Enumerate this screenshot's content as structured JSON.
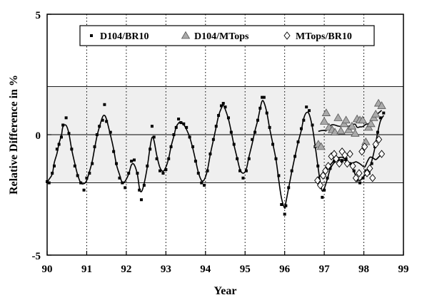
{
  "chart_data": {
    "type": "scatter",
    "xlabel": "Year",
    "ylabel": "Relative Difference in %",
    "xlim": [
      90,
      99
    ],
    "ylim": [
      -5,
      5
    ],
    "x_ticks": [
      "90",
      "91",
      "92",
      "93",
      "94",
      "95",
      "96",
      "97",
      "98",
      "99"
    ],
    "y_ticks": [
      "5",
      "0",
      "-5"
    ],
    "y_tick_values": [
      5,
      0,
      -5
    ],
    "shaded_band": [
      -2,
      2
    ],
    "grid": {
      "vertical_dotted": true,
      "horizontal_at_zero": true
    },
    "legend": {
      "placement": "top-center",
      "border": true
    },
    "series": [
      {
        "name": "D104/BR10",
        "marker": "square",
        "color": "#000000",
        "points": [
          [
            90.0,
            -1.95
          ],
          [
            90.05,
            -2.0
          ],
          [
            90.13,
            -1.6
          ],
          [
            90.18,
            -1.3
          ],
          [
            90.25,
            -0.6
          ],
          [
            90.3,
            -0.4
          ],
          [
            90.36,
            -0.1
          ],
          [
            90.4,
            0.4
          ],
          [
            90.48,
            0.7
          ],
          [
            90.55,
            0.05
          ],
          [
            90.62,
            -0.6
          ],
          [
            90.7,
            -1.3
          ],
          [
            90.77,
            -1.7
          ],
          [
            90.85,
            -2.0
          ],
          [
            90.93,
            -2.3
          ],
          [
            91.0,
            -1.8
          ],
          [
            91.07,
            -1.6
          ],
          [
            91.14,
            -1.2
          ],
          [
            91.2,
            -0.5
          ],
          [
            91.26,
            0.0
          ],
          [
            91.32,
            0.35
          ],
          [
            91.4,
            0.6
          ],
          [
            91.45,
            1.25
          ],
          [
            91.5,
            0.55
          ],
          [
            91.6,
            0.1
          ],
          [
            91.68,
            -0.7
          ],
          [
            91.75,
            -1.2
          ],
          [
            91.83,
            -1.8
          ],
          [
            91.9,
            -2.0
          ],
          [
            91.97,
            -2.2
          ],
          [
            92.06,
            -1.6
          ],
          [
            92.13,
            -1.1
          ],
          [
            92.2,
            -1.05
          ],
          [
            92.28,
            -1.6
          ],
          [
            92.33,
            -2.3
          ],
          [
            92.38,
            -2.7
          ],
          [
            92.45,
            -2.1
          ],
          [
            92.53,
            -1.3
          ],
          [
            92.6,
            -0.6
          ],
          [
            92.65,
            0.35
          ],
          [
            92.7,
            -0.1
          ],
          [
            92.77,
            -1.0
          ],
          [
            92.85,
            -1.5
          ],
          [
            92.93,
            -1.6
          ],
          [
            93.0,
            -1.45
          ],
          [
            93.07,
            -1.0
          ],
          [
            93.13,
            -0.5
          ],
          [
            93.2,
            0.0
          ],
          [
            93.26,
            0.3
          ],
          [
            93.32,
            0.65
          ],
          [
            93.38,
            0.5
          ],
          [
            93.45,
            0.45
          ],
          [
            93.52,
            0.3
          ],
          [
            93.6,
            -0.1
          ],
          [
            93.68,
            -0.5
          ],
          [
            93.75,
            -1.1
          ],
          [
            93.82,
            -1.6
          ],
          [
            93.9,
            -2.0
          ],
          [
            93.97,
            -2.1
          ],
          [
            94.05,
            -1.5
          ],
          [
            94.12,
            -0.8
          ],
          [
            94.2,
            -0.2
          ],
          [
            94.27,
            0.35
          ],
          [
            94.33,
            0.8
          ],
          [
            94.4,
            1.2
          ],
          [
            94.45,
            1.3
          ],
          [
            94.5,
            1.15
          ],
          [
            94.58,
            0.7
          ],
          [
            94.65,
            0.1
          ],
          [
            94.72,
            -0.4
          ],
          [
            94.8,
            -1.0
          ],
          [
            94.87,
            -1.5
          ],
          [
            94.95,
            -1.8
          ],
          [
            95.03,
            -1.5
          ],
          [
            95.1,
            -1.0
          ],
          [
            95.18,
            -0.2
          ],
          [
            95.25,
            0.1
          ],
          [
            95.32,
            0.6
          ],
          [
            95.38,
            1.1
          ],
          [
            95.43,
            1.55
          ],
          [
            95.48,
            1.55
          ],
          [
            95.55,
            0.9
          ],
          [
            95.62,
            0.3
          ],
          [
            95.7,
            -0.4
          ],
          [
            95.78,
            -1.0
          ],
          [
            95.85,
            -1.7
          ],
          [
            95.92,
            -2.9
          ],
          [
            96.0,
            -3.3
          ],
          [
            96.03,
            -2.95
          ],
          [
            96.1,
            -2.2
          ],
          [
            96.18,
            -1.5
          ],
          [
            96.26,
            -0.9
          ],
          [
            96.34,
            -0.3
          ],
          [
            96.42,
            0.25
          ],
          [
            96.48,
            0.6
          ],
          [
            96.55,
            1.15
          ],
          [
            96.62,
            1.0
          ],
          [
            96.7,
            0.4
          ],
          [
            96.77,
            -0.5
          ],
          [
            96.84,
            -1.3
          ],
          [
            96.9,
            -2.1
          ],
          [
            96.95,
            -2.6
          ],
          [
            97.0,
            -2.3
          ],
          [
            97.08,
            -1.8
          ],
          [
            97.15,
            -1.4
          ],
          [
            97.25,
            -1.1
          ],
          [
            97.35,
            -1.0
          ],
          [
            97.45,
            -1.1
          ],
          [
            97.55,
            -1.0
          ],
          [
            97.65,
            -1.2
          ],
          [
            97.75,
            -1.5
          ],
          [
            97.82,
            -1.9
          ],
          [
            97.9,
            -2.0
          ],
          [
            97.98,
            -1.8
          ],
          [
            98.05,
            -1.5
          ],
          [
            98.13,
            -1.6
          ],
          [
            98.2,
            -1.2
          ],
          [
            98.28,
            -0.5
          ],
          [
            98.35,
            0.1
          ],
          [
            98.42,
            0.7
          ],
          [
            98.5,
            0.9
          ]
        ]
      },
      {
        "name": "D104/MTops",
        "marker": "triangle",
        "color": "#aaaaaa",
        "points": [
          [
            96.85,
            -0.4
          ],
          [
            96.92,
            -0.5
          ],
          [
            97.0,
            0.55
          ],
          [
            97.05,
            0.9
          ],
          [
            97.12,
            0.3
          ],
          [
            97.2,
            0.2
          ],
          [
            97.27,
            0.1
          ],
          [
            97.35,
            0.7
          ],
          [
            97.42,
            0.15
          ],
          [
            97.5,
            0.45
          ],
          [
            97.55,
            0.6
          ],
          [
            97.62,
            0.2
          ],
          [
            97.7,
            0.35
          ],
          [
            97.78,
            0.05
          ],
          [
            97.83,
            0.65
          ],
          [
            97.9,
            0.6
          ],
          [
            97.97,
            0.6
          ],
          [
            98.05,
            -0.3
          ],
          [
            98.12,
            0.3
          ],
          [
            98.18,
            0.45
          ],
          [
            98.25,
            0.7
          ],
          [
            98.3,
            0.85
          ],
          [
            98.37,
            1.3
          ],
          [
            98.45,
            1.2
          ]
        ]
      },
      {
        "name": "MTops/BR10",
        "marker": "diamond",
        "color": "#ffffff",
        "points": [
          [
            96.83,
            -1.9
          ],
          [
            96.9,
            -2.1
          ],
          [
            96.97,
            -1.7
          ],
          [
            97.03,
            -1.5
          ],
          [
            97.1,
            -1.3
          ],
          [
            97.18,
            -0.9
          ],
          [
            97.25,
            -0.8
          ],
          [
            97.3,
            -1.0
          ],
          [
            97.38,
            -1.2
          ],
          [
            97.45,
            -0.7
          ],
          [
            97.52,
            -0.85
          ],
          [
            97.58,
            -1.2
          ],
          [
            97.65,
            -0.8
          ],
          [
            97.72,
            -1.3
          ],
          [
            97.8,
            -1.8
          ],
          [
            97.88,
            -1.6
          ],
          [
            97.95,
            -0.7
          ],
          [
            98.02,
            -0.5
          ],
          [
            98.08,
            -1.6
          ],
          [
            98.15,
            -1.4
          ],
          [
            98.22,
            -1.8
          ],
          [
            98.3,
            -0.4
          ],
          [
            98.38,
            -0.2
          ],
          [
            98.45,
            -0.8
          ]
        ]
      }
    ]
  }
}
